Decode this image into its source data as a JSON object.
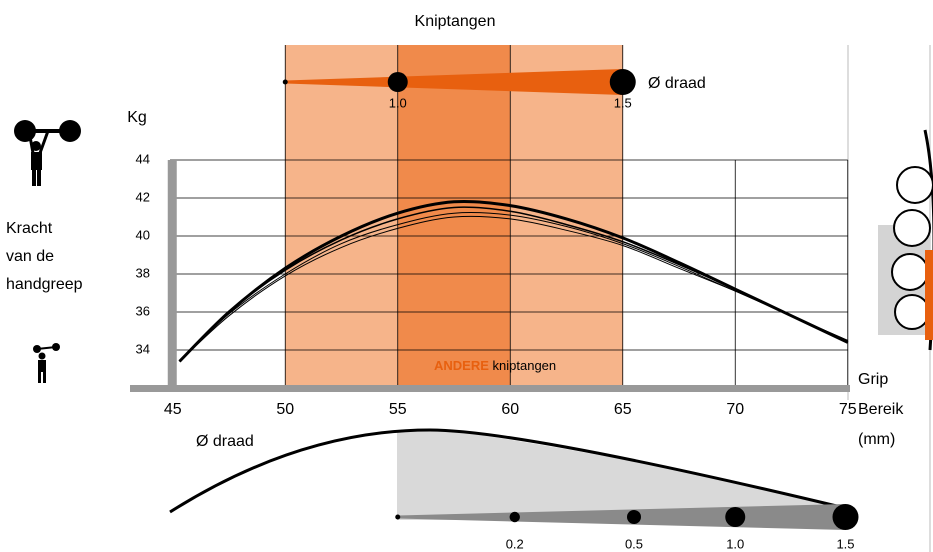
{
  "chart_data": {
    "type": "line",
    "title": "Kniptangen",
    "y_label": "Kg",
    "y_title_lines": [
      "Kracht",
      "van de",
      "handgreep"
    ],
    "x_title_lines": [
      "Grip",
      "Bereik",
      "(mm)"
    ],
    "xlim": [
      43.1,
      75.1
    ],
    "xticks": [
      45,
      50,
      55,
      60,
      65,
      70,
      75
    ],
    "ylim": [
      32,
      44
    ],
    "yticks": [
      34,
      36,
      38,
      40,
      42,
      44
    ],
    "grid": true,
    "bands": [
      {
        "from": 50,
        "to": 65,
        "color": "#f6b48a"
      },
      {
        "from": 55,
        "to": 60,
        "color": "#f08a4b"
      }
    ],
    "band_label_strong": "ANDERE",
    "band_label": "kniptangen",
    "x": [
      45.3,
      47.5,
      50,
      52.5,
      55,
      57.5,
      60,
      62.5,
      65,
      67.5,
      70,
      72.5,
      75
    ],
    "series": [
      {
        "color": "#000000",
        "line_width": 3,
        "values": [
          33.4,
          36.0,
          38.3,
          40.0,
          41.2,
          41.8,
          41.6,
          40.9,
          39.9,
          38.6,
          37.2,
          35.8,
          34.4
        ]
      },
      {
        "color": "#000000",
        "line_width": 1.5,
        "values": [
          33.4,
          36.0,
          38.2,
          39.8,
          40.9,
          41.5,
          41.3,
          40.6,
          39.7,
          38.5,
          37.2,
          35.8,
          34.4
        ]
      },
      {
        "color": "#000000",
        "line_width": 1,
        "values": [
          33.4,
          35.9,
          38.0,
          39.6,
          40.6,
          41.2,
          41.1,
          40.5,
          39.6,
          38.4,
          37.1,
          35.8,
          34.5
        ]
      },
      {
        "color": "#000000",
        "line_width": 1,
        "values": [
          33.4,
          35.8,
          37.9,
          39.4,
          40.4,
          41.0,
          40.9,
          40.3,
          39.5,
          38.3,
          37.1,
          35.8,
          34.5
        ]
      }
    ],
    "wire_label": "Ø draad",
    "top_wire": {
      "x_start": 50,
      "color": "#e8600f",
      "markers": [
        {
          "x": 55,
          "diameter": {
            "value": 1,
            "label": "1.0"
          }
        },
        {
          "x": 65,
          "diameter": 1.5
        }
      ]
    },
    "bottom_wire": {
      "x_start": 55,
      "color": "#8a8a8a",
      "markers": [
        {
          "x": 60.2,
          "diameter": 0.2
        },
        {
          "x": 65.5,
          "diameter": 0.5
        },
        {
          "x": 70,
          "diameter": {
            "value": 1,
            "label": "1.0"
          }
        },
        {
          "x": 74.9,
          "diameter": 1.5
        }
      ]
    }
  }
}
